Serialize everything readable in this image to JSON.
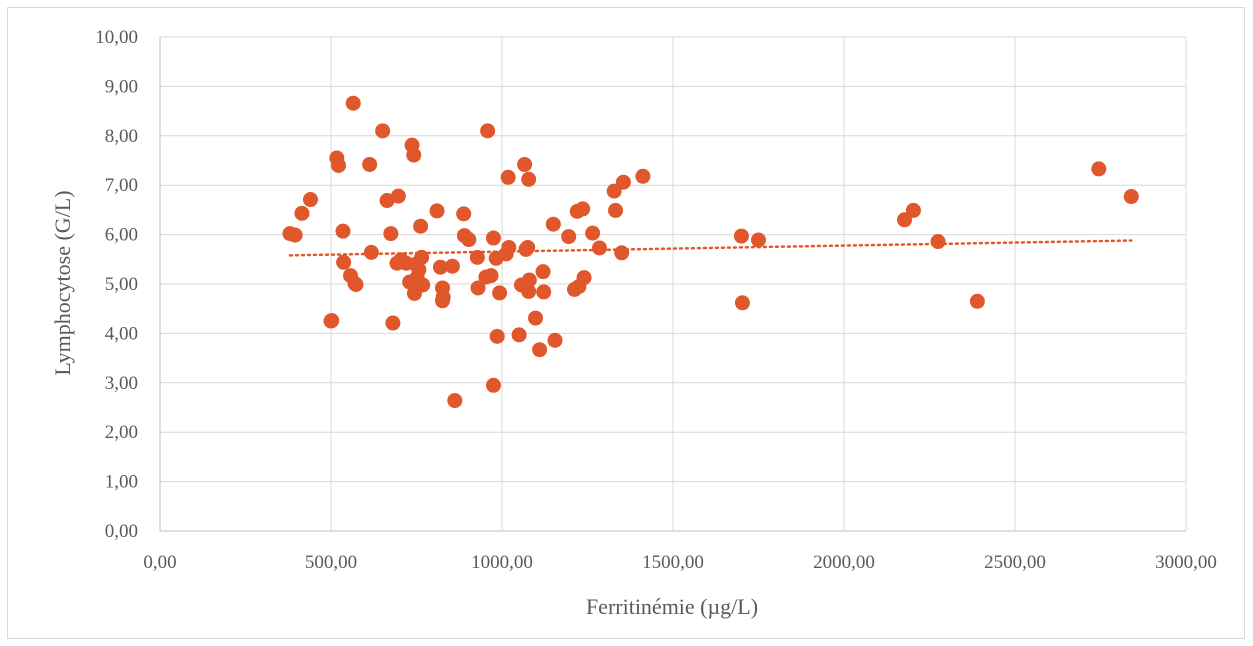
{
  "chart_data": {
    "type": "scatter",
    "title": "",
    "xlabel": "Ferritinémie (µg/L)",
    "ylabel": "Lymphocytose (G/L)",
    "xlim": [
      0,
      3000
    ],
    "ylim": [
      0,
      10
    ],
    "x_ticks": [
      "0,00",
      "500,00",
      "1000,00",
      "1500,00",
      "2000,00",
      "2500,00",
      "3000,00"
    ],
    "y_ticks": [
      "0,00",
      "1,00",
      "2,00",
      "3,00",
      "4,00",
      "5,00",
      "6,00",
      "7,00",
      "8,00",
      "9,00",
      "10,00"
    ],
    "grid": true,
    "legend": "none",
    "marker_color": "#E0572B",
    "trendline": {
      "type": "linear",
      "style": "dotted",
      "color": "#E0572B",
      "x_range": [
        380,
        2840
      ],
      "y_start": 5.58,
      "y_end": 5.88
    },
    "series": [
      {
        "points": [
          [
            380,
            6.02
          ],
          [
            395,
            5.99
          ],
          [
            415,
            6.43
          ],
          [
            440,
            6.71
          ],
          [
            500,
            4.25
          ],
          [
            502,
            4.26
          ],
          [
            517,
            7.55
          ],
          [
            522,
            7.4
          ],
          [
            535,
            6.07
          ],
          [
            537,
            5.44
          ],
          [
            557,
            5.17
          ],
          [
            565,
            8.66
          ],
          [
            570,
            5.01
          ],
          [
            573,
            4.99
          ],
          [
            613,
            7.42
          ],
          [
            618,
            5.64
          ],
          [
            651,
            8.1
          ],
          [
            664,
            6.69
          ],
          [
            675,
            6.02
          ],
          [
            681,
            4.21
          ],
          [
            693,
            5.42
          ],
          [
            697,
            6.78
          ],
          [
            705,
            5.49
          ],
          [
            720,
            5.42
          ],
          [
            730,
            5.04
          ],
          [
            737,
            7.81
          ],
          [
            742,
            7.61
          ],
          [
            744,
            4.81
          ],
          [
            748,
            5.4
          ],
          [
            752,
            5.13
          ],
          [
            757,
            5.29
          ],
          [
            762,
            6.17
          ],
          [
            765,
            5.54
          ],
          [
            768,
            4.98
          ],
          [
            810,
            6.48
          ],
          [
            820,
            5.34
          ],
          [
            826,
            4.92
          ],
          [
            828,
            4.73
          ],
          [
            826,
            4.66
          ],
          [
            855,
            5.36
          ],
          [
            862,
            2.64
          ],
          [
            888,
            6.42
          ],
          [
            890,
            5.98
          ],
          [
            903,
            5.9
          ],
          [
            928,
            5.54
          ],
          [
            930,
            4.92
          ],
          [
            953,
            5.14
          ],
          [
            958,
            8.1
          ],
          [
            968,
            5.17
          ],
          [
            975,
            5.93
          ],
          [
            975,
            2.95
          ],
          [
            983,
            5.52
          ],
          [
            986,
            3.94
          ],
          [
            993,
            4.82
          ],
          [
            1012,
            5.61
          ],
          [
            1018,
            7.16
          ],
          [
            1020,
            5.74
          ],
          [
            1050,
            3.97
          ],
          [
            1057,
            4.98
          ],
          [
            1066,
            7.42
          ],
          [
            1070,
            5.7
          ],
          [
            1075,
            5.74
          ],
          [
            1078,
            7.12
          ],
          [
            1078,
            4.85
          ],
          [
            1080,
            5.08
          ],
          [
            1098,
            4.31
          ],
          [
            1110,
            3.67
          ],
          [
            1120,
            5.25
          ],
          [
            1122,
            4.84
          ],
          [
            1150,
            6.21
          ],
          [
            1155,
            3.86
          ],
          [
            1195,
            5.96
          ],
          [
            1212,
            4.89
          ],
          [
            1220,
            6.47
          ],
          [
            1225,
            4.95
          ],
          [
            1236,
            6.52
          ],
          [
            1240,
            5.13
          ],
          [
            1265,
            6.03
          ],
          [
            1285,
            5.73
          ],
          [
            1328,
            6.88
          ],
          [
            1332,
            6.49
          ],
          [
            1350,
            5.63
          ],
          [
            1355,
            7.06
          ],
          [
            1412,
            7.18
          ],
          [
            1700,
            5.97
          ],
          [
            1703,
            4.62
          ],
          [
            1750,
            5.89
          ],
          [
            2177,
            6.3
          ],
          [
            2203,
            6.49
          ],
          [
            2275,
            5.86
          ],
          [
            2390,
            4.65
          ],
          [
            2745,
            7.33
          ],
          [
            2840,
            6.77
          ]
        ]
      }
    ]
  }
}
